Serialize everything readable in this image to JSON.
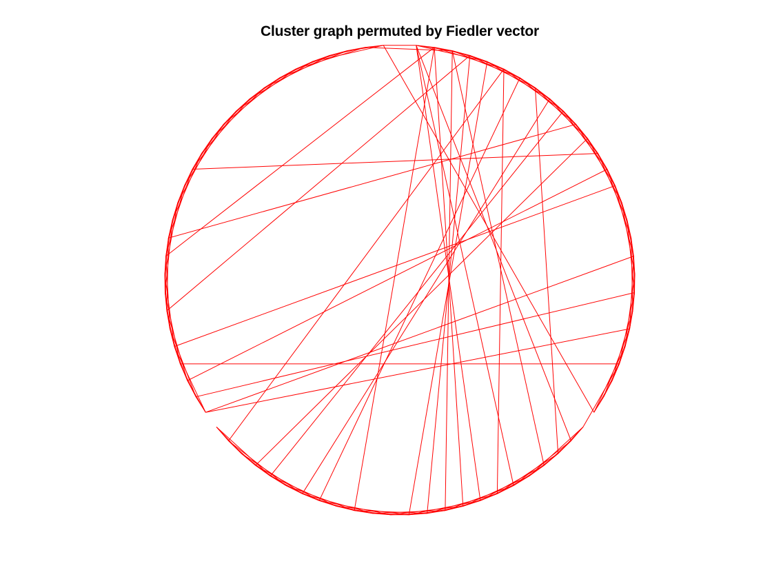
{
  "figure": {
    "title": "Cluster graph permuted by Fiedler vector"
  },
  "colors": {
    "background": "#ffffff",
    "edge": "#ff0000",
    "title": "#000000"
  },
  "chart_data": {
    "type": "circular-graph-layout",
    "title": "Cluster graph permuted by Fiedler vector",
    "node_count": 80,
    "edges": [
      [
        0,
        1
      ],
      [
        0,
        2
      ],
      [
        0,
        4
      ],
      [
        0,
        29
      ],
      [
        0,
        33
      ],
      [
        0,
        35
      ],
      [
        1,
        2
      ],
      [
        1,
        3
      ],
      [
        1,
        5
      ],
      [
        1,
        36
      ],
      [
        1,
        61
      ],
      [
        1,
        42
      ],
      [
        2,
        3
      ],
      [
        2,
        4
      ],
      [
        2,
        6
      ],
      [
        2,
        31
      ],
      [
        2,
        37
      ],
      [
        3,
        4
      ],
      [
        3,
        5
      ],
      [
        3,
        7
      ],
      [
        3,
        38
      ],
      [
        3,
        58
      ],
      [
        4,
        5
      ],
      [
        4,
        6
      ],
      [
        4,
        8
      ],
      [
        4,
        39
      ],
      [
        5,
        6
      ],
      [
        5,
        7
      ],
      [
        5,
        9
      ],
      [
        5,
        34
      ],
      [
        5,
        50
      ],
      [
        6,
        7
      ],
      [
        6,
        8
      ],
      [
        6,
        10
      ],
      [
        6,
        44
      ],
      [
        7,
        8
      ],
      [
        7,
        9
      ],
      [
        7,
        11
      ],
      [
        7,
        30
      ],
      [
        8,
        9
      ],
      [
        8,
        10
      ],
      [
        8,
        12
      ],
      [
        8,
        45
      ],
      [
        9,
        10
      ],
      [
        9,
        11
      ],
      [
        9,
        13
      ],
      [
        9,
        47
      ],
      [
        10,
        11
      ],
      [
        10,
        12
      ],
      [
        10,
        14
      ],
      [
        10,
        62
      ],
      [
        11,
        12
      ],
      [
        11,
        13
      ],
      [
        11,
        15
      ],
      [
        11,
        48
      ],
      [
        12,
        13
      ],
      [
        12,
        14
      ],
      [
        12,
        16
      ],
      [
        12,
        66
      ],
      [
        13,
        14
      ],
      [
        13,
        15
      ],
      [
        13,
        17
      ],
      [
        13,
        54
      ],
      [
        14,
        15
      ],
      [
        14,
        16
      ],
      [
        14,
        18
      ],
      [
        15,
        16
      ],
      [
        15,
        17
      ],
      [
        15,
        19
      ],
      [
        16,
        17
      ],
      [
        16,
        18
      ],
      [
        16,
        20
      ],
      [
        17,
        18
      ],
      [
        17,
        19
      ],
      [
        17,
        21
      ],
      [
        18,
        19
      ],
      [
        18,
        20
      ],
      [
        18,
        22
      ],
      [
        19,
        20
      ],
      [
        19,
        21
      ],
      [
        19,
        23
      ],
      [
        20,
        21
      ],
      [
        20,
        22
      ],
      [
        20,
        24
      ],
      [
        21,
        22
      ],
      [
        21,
        23
      ],
      [
        21,
        25
      ],
      [
        22,
        23
      ],
      [
        22,
        24
      ],
      [
        22,
        26
      ],
      [
        23,
        24
      ],
      [
        23,
        25
      ],
      [
        23,
        27
      ],
      [
        24,
        25
      ],
      [
        24,
        26
      ],
      [
        24,
        28
      ],
      [
        25,
        26
      ],
      [
        25,
        27
      ],
      [
        26,
        27
      ],
      [
        28,
        29
      ],
      [
        28,
        30
      ],
      [
        28,
        32
      ],
      [
        29,
        30
      ],
      [
        29,
        31
      ],
      [
        29,
        33
      ],
      [
        30,
        31
      ],
      [
        30,
        32
      ],
      [
        30,
        34
      ],
      [
        31,
        32
      ],
      [
        31,
        33
      ],
      [
        31,
        35
      ],
      [
        32,
        33
      ],
      [
        32,
        34
      ],
      [
        32,
        36
      ],
      [
        33,
        34
      ],
      [
        33,
        35
      ],
      [
        33,
        37
      ],
      [
        34,
        35
      ],
      [
        34,
        36
      ],
      [
        34,
        38
      ],
      [
        35,
        36
      ],
      [
        35,
        37
      ],
      [
        35,
        39
      ],
      [
        36,
        37
      ],
      [
        36,
        38
      ],
      [
        36,
        40
      ],
      [
        37,
        38
      ],
      [
        37,
        39
      ],
      [
        37,
        41
      ],
      [
        38,
        39
      ],
      [
        38,
        40
      ],
      [
        38,
        42
      ],
      [
        39,
        40
      ],
      [
        39,
        41
      ],
      [
        39,
        43
      ],
      [
        40,
        41
      ],
      [
        40,
        42
      ],
      [
        40,
        44
      ],
      [
        41,
        42
      ],
      [
        41,
        43
      ],
      [
        41,
        45
      ],
      [
        42,
        43
      ],
      [
        42,
        44
      ],
      [
        42,
        46
      ],
      [
        43,
        44
      ],
      [
        43,
        45
      ],
      [
        43,
        47
      ],
      [
        44,
        45
      ],
      [
        44,
        46
      ],
      [
        44,
        48
      ],
      [
        45,
        46
      ],
      [
        45,
        47
      ],
      [
        45,
        49
      ],
      [
        46,
        47
      ],
      [
        46,
        48
      ],
      [
        46,
        50
      ],
      [
        47,
        48
      ],
      [
        47,
        49
      ],
      [
        47,
        51
      ],
      [
        48,
        49
      ],
      [
        48,
        50
      ],
      [
        49,
        50
      ],
      [
        49,
        51
      ],
      [
        50,
        51
      ],
      [
        52,
        53
      ],
      [
        52,
        54
      ],
      [
        52,
        56
      ],
      [
        52,
        22
      ],
      [
        52,
        18
      ],
      [
        53,
        54
      ],
      [
        53,
        55
      ],
      [
        53,
        57
      ],
      [
        53,
        20
      ],
      [
        54,
        55
      ],
      [
        54,
        56
      ],
      [
        54,
        58
      ],
      [
        55,
        56
      ],
      [
        55,
        57
      ],
      [
        55,
        59
      ],
      [
        55,
        24
      ],
      [
        56,
        57
      ],
      [
        56,
        58
      ],
      [
        56,
        60
      ],
      [
        56,
        14
      ],
      [
        57,
        58
      ],
      [
        57,
        59
      ],
      [
        57,
        61
      ],
      [
        58,
        59
      ],
      [
        58,
        60
      ],
      [
        58,
        62
      ],
      [
        59,
        60
      ],
      [
        59,
        61
      ],
      [
        59,
        63
      ],
      [
        60,
        61
      ],
      [
        60,
        62
      ],
      [
        60,
        64
      ],
      [
        61,
        62
      ],
      [
        61,
        63
      ],
      [
        61,
        65
      ],
      [
        62,
        63
      ],
      [
        62,
        64
      ],
      [
        62,
        66
      ],
      [
        63,
        64
      ],
      [
        63,
        65
      ],
      [
        63,
        67
      ],
      [
        64,
        65
      ],
      [
        64,
        66
      ],
      [
        64,
        68
      ],
      [
        65,
        66
      ],
      [
        65,
        67
      ],
      [
        65,
        69
      ],
      [
        66,
        67
      ],
      [
        66,
        68
      ],
      [
        66,
        70
      ],
      [
        67,
        68
      ],
      [
        67,
        69
      ],
      [
        67,
        71
      ],
      [
        68,
        69
      ],
      [
        68,
        70
      ],
      [
        68,
        72
      ],
      [
        69,
        70
      ],
      [
        69,
        71
      ],
      [
        69,
        73
      ],
      [
        70,
        71
      ],
      [
        70,
        72
      ],
      [
        70,
        74
      ],
      [
        71,
        72
      ],
      [
        71,
        73
      ],
      [
        71,
        75
      ],
      [
        72,
        73
      ],
      [
        72,
        74
      ],
      [
        72,
        76
      ],
      [
        73,
        74
      ],
      [
        73,
        75
      ],
      [
        73,
        77
      ],
      [
        74,
        75
      ],
      [
        74,
        76
      ],
      [
        74,
        78
      ],
      [
        75,
        76
      ],
      [
        75,
        77
      ],
      [
        75,
        79
      ],
      [
        76,
        77
      ],
      [
        76,
        78
      ],
      [
        77,
        78
      ],
      [
        77,
        79
      ],
      [
        78,
        79
      ],
      [
        79,
        27
      ],
      [
        79,
        0
      ],
      [
        78,
        2
      ]
    ]
  }
}
